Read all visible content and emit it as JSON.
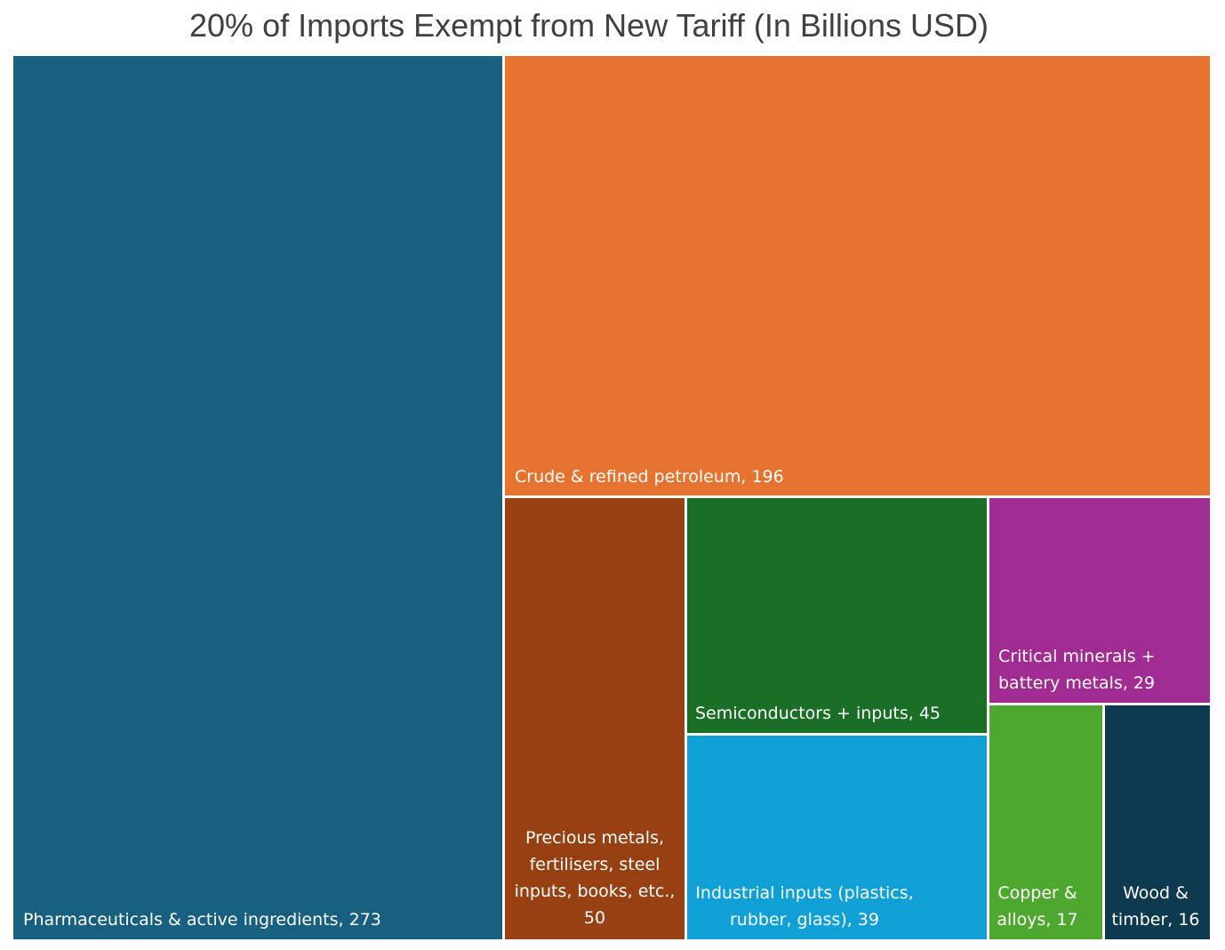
{
  "chart_data": {
    "type": "treemap",
    "title": "20% of Imports Exempt from New Tariff (In Billions USD)",
    "unit": "Billions USD",
    "items": [
      {
        "id": "pharma",
        "label_lines": [
          "Pharmaceuticals & active ingredients, 273"
        ],
        "name": "Pharmaceuticals & active ingredients",
        "value": 273,
        "color": "#17607f",
        "align": "start"
      },
      {
        "id": "petroleum",
        "label_lines": [
          "Crude & refined petroleum, 196"
        ],
        "name": "Crude & refined petroleum",
        "value": 196,
        "color": "#e6722f",
        "align": "start"
      },
      {
        "id": "precious",
        "label_lines": [
          "Precious metals,",
          "fertilisers, steel",
          "inputs, books, etc.,",
          "50"
        ],
        "name": "Precious metals, fertilisers, steel inputs, books, etc.",
        "value": 50,
        "color": "#974011",
        "align": "middle"
      },
      {
        "id": "semis",
        "label_lines": [
          "Semiconductors + inputs, 45"
        ],
        "name": "Semiconductors + inputs",
        "value": 45,
        "color": "#1b6e25",
        "align": "start"
      },
      {
        "id": "industrial",
        "label_lines": [
          "Industrial inputs (plastics,",
          "rubber, glass), 39"
        ],
        "name": "Industrial inputs (plastics, rubber, glass)",
        "value": 39,
        "color": "#11a0d6",
        "align": "middle"
      },
      {
        "id": "critical",
        "label_lines": [
          "Critical minerals +",
          "battery metals, 29"
        ],
        "name": "Critical minerals + battery metals",
        "value": 29,
        "color": "#a02b91",
        "align": "start"
      },
      {
        "id": "copper",
        "label_lines": [
          "Copper &",
          "alloys, 17"
        ],
        "name": "Copper & alloys",
        "value": 17,
        "color": "#4ea72e",
        "align": "middle"
      },
      {
        "id": "wood",
        "label_lines": [
          "Wood &",
          "timber, 16"
        ],
        "name": "Wood & timber",
        "value": 16,
        "color": "#0d3a4f",
        "align": "middle"
      }
    ]
  }
}
